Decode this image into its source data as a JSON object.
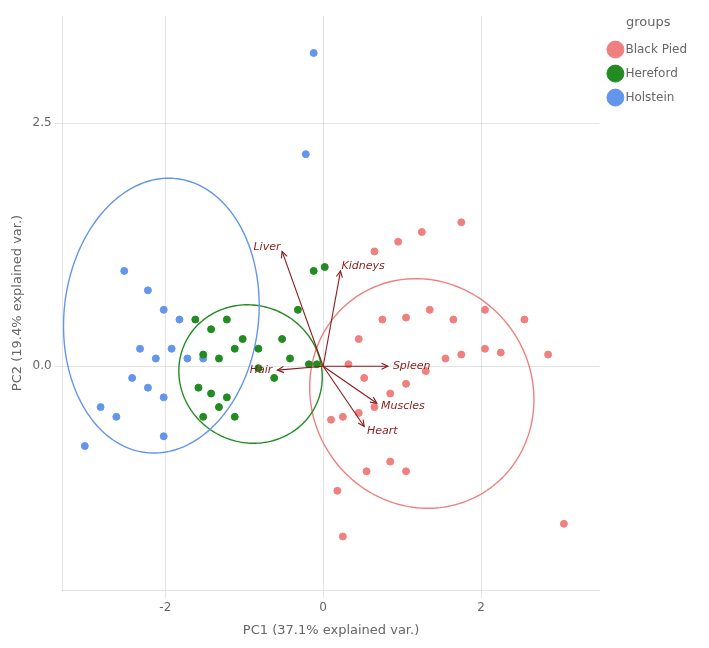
{
  "chart_data": {
    "type": "scatter",
    "xlabel": "PC1 (37.1% explained var.)",
    "ylabel": "PC2 (19.4% explained var.)",
    "xlim": [
      -3.3,
      3.5
    ],
    "ylim": [
      -2.3,
      3.6
    ],
    "xticks": [
      -2,
      0,
      2
    ],
    "yticks": [
      {
        "value": 0.0,
        "label": "0.0"
      },
      2.5
    ],
    "grid": true,
    "legend": "right",
    "legend_title": "groups",
    "series": [
      {
        "name": "Black Pied",
        "color": "#f08080",
        "points": [
          [
            0.1,
            -0.55
          ],
          [
            0.25,
            -0.52
          ],
          [
            0.45,
            -0.48
          ],
          [
            0.65,
            -0.42
          ],
          [
            0.85,
            -0.28
          ],
          [
            1.05,
            -0.18
          ],
          [
            1.3,
            -0.05
          ],
          [
            1.55,
            0.08
          ],
          [
            1.75,
            0.12
          ],
          [
            2.05,
            0.18
          ],
          [
            2.25,
            0.14
          ],
          [
            2.85,
            0.12
          ],
          [
            0.45,
            0.28
          ],
          [
            0.75,
            0.48
          ],
          [
            1.05,
            0.5
          ],
          [
            1.35,
            0.58
          ],
          [
            1.65,
            0.48
          ],
          [
            2.05,
            0.58
          ],
          [
            2.55,
            0.48
          ],
          [
            0.65,
            1.18
          ],
          [
            0.95,
            1.28
          ],
          [
            1.25,
            1.38
          ],
          [
            1.75,
            1.48
          ],
          [
            0.18,
            -1.28
          ],
          [
            0.55,
            -1.08
          ],
          [
            0.85,
            -0.98
          ],
          [
            1.05,
            -1.08
          ],
          [
            0.32,
            0.02
          ],
          [
            0.52,
            -0.12
          ],
          [
            0.25,
            -1.75
          ],
          [
            3.05,
            -1.62
          ]
        ],
        "ellipse": {
          "cx": 1.25,
          "cy": -0.28,
          "width": 2.85,
          "height": 2.35,
          "angle": -8
        }
      },
      {
        "name": "Hereford",
        "color": "#228B22",
        "points": [
          [
            -1.62,
            0.48
          ],
          [
            -1.42,
            0.38
          ],
          [
            -1.22,
            0.48
          ],
          [
            -1.02,
            0.28
          ],
          [
            -1.52,
            0.12
          ],
          [
            -1.32,
            0.08
          ],
          [
            -1.12,
            0.18
          ],
          [
            -1.58,
            -0.22
          ],
          [
            -1.42,
            -0.28
          ],
          [
            -1.22,
            -0.32
          ],
          [
            -1.52,
            -0.52
          ],
          [
            -1.32,
            -0.42
          ],
          [
            -1.12,
            -0.52
          ],
          [
            -0.82,
            -0.02
          ],
          [
            -0.62,
            -0.12
          ],
          [
            -0.42,
            0.08
          ],
          [
            -0.82,
            0.18
          ],
          [
            -0.52,
            0.28
          ],
          [
            -0.32,
            0.58
          ],
          [
            -0.12,
            0.98
          ],
          [
            0.02,
            1.02
          ],
          [
            -0.18,
            0.02
          ],
          [
            -0.08,
            0.02
          ]
        ],
        "ellipse": {
          "cx": -0.92,
          "cy": -0.08,
          "width": 1.82,
          "height": 1.42,
          "angle": -5
        }
      },
      {
        "name": "Holstein",
        "color": "#6495ED",
        "points": [
          [
            -2.52,
            0.98
          ],
          [
            -2.22,
            0.78
          ],
          [
            -2.02,
            0.58
          ],
          [
            -1.82,
            0.48
          ],
          [
            -2.32,
            0.18
          ],
          [
            -2.12,
            0.08
          ],
          [
            -1.92,
            0.18
          ],
          [
            -1.72,
            0.08
          ],
          [
            -2.42,
            -0.12
          ],
          [
            -2.22,
            -0.22
          ],
          [
            -2.02,
            -0.32
          ],
          [
            -2.82,
            -0.42
          ],
          [
            -2.62,
            -0.52
          ],
          [
            -3.02,
            -0.82
          ],
          [
            -2.02,
            -0.72
          ],
          [
            -1.52,
            0.08
          ],
          [
            -0.22,
            2.18
          ],
          [
            -0.12,
            3.22
          ]
        ],
        "ellipse": {
          "cx": -2.05,
          "cy": 0.52,
          "width": 2.45,
          "height": 2.85,
          "angle": -15
        }
      }
    ],
    "annotations": [
      {
        "text": "Liver",
        "x": -0.52,
        "y": 1.18,
        "color": "#8B1a1a"
      },
      {
        "text": "Kidneys",
        "x": 0.22,
        "y": 0.98,
        "color": "#8B1a1a"
      },
      {
        "text": "Hair",
        "x": -0.58,
        "y": -0.04,
        "color": "#8B1a1a"
      },
      {
        "text": "Spleen",
        "x": 0.82,
        "y": 0.0,
        "color": "#8B1a1a"
      },
      {
        "text": "Muscles",
        "x": 0.68,
        "y": -0.38,
        "color": "#8B1a1a"
      },
      {
        "text": "Heart",
        "x": 0.52,
        "y": -0.62,
        "color": "#8B1a1a"
      }
    ]
  }
}
